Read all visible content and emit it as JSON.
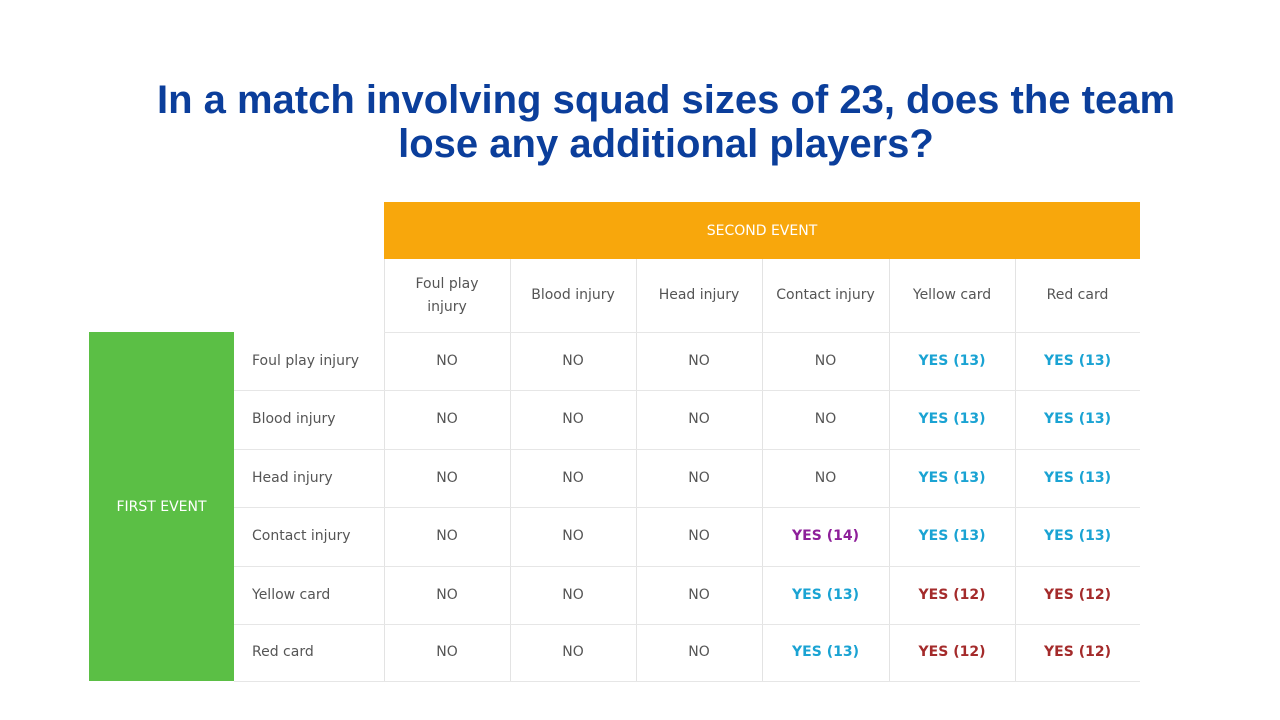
{
  "title": {
    "line1": "In a match involving squad sizes of 23, does the team",
    "line2": "lose any additional players?"
  },
  "table": {
    "second_event_label": "SECOND EVENT",
    "first_event_label": "FIRST EVENT",
    "columns": [
      "Foul play injury",
      "Blood injury",
      "Head injury",
      "Contact injury",
      "Yellow card",
      "Red card"
    ],
    "rows": [
      {
        "label": "Foul play injury",
        "cells": [
          "NO",
          "NO",
          "NO",
          "NO",
          "YES (13)",
          "YES (13)"
        ]
      },
      {
        "label": "Blood injury",
        "cells": [
          "NO",
          "NO",
          "NO",
          "NO",
          "YES (13)",
          "YES (13)"
        ]
      },
      {
        "label": "Head injury",
        "cells": [
          "NO",
          "NO",
          "NO",
          "NO",
          "YES (13)",
          "YES (13)"
        ]
      },
      {
        "label": "Contact injury",
        "cells": [
          "NO",
          "NO",
          "NO",
          "YES (14)",
          "YES (13)",
          "YES (13)"
        ]
      },
      {
        "label": "Yellow card",
        "cells": [
          "NO",
          "NO",
          "NO",
          "YES (13)",
          "YES (12)",
          "YES (12)"
        ]
      },
      {
        "label": "Red card",
        "cells": [
          "NO",
          "NO",
          "NO",
          "YES (13)",
          "YES (12)",
          "YES (12)"
        ]
      }
    ]
  },
  "colors": {
    "title": "#0b3e9b",
    "second_event_header": "#f8a70c",
    "first_event_header": "#5bbf45",
    "no": "#555555",
    "yes_13": "#1aa3d3",
    "yes_14": "#8e1f9a",
    "yes_12": "#a42b2b"
  }
}
